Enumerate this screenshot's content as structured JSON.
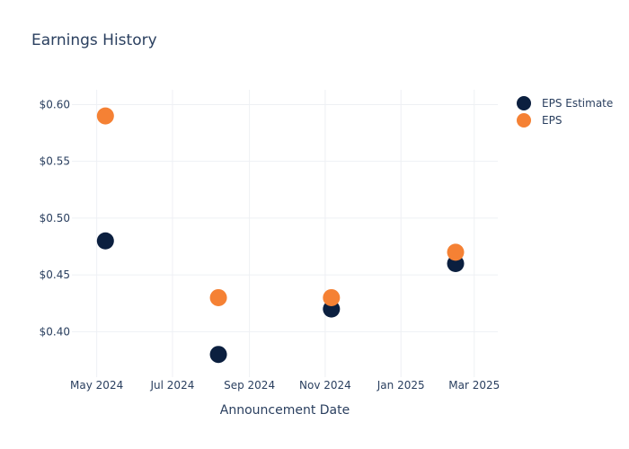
{
  "chart_data": {
    "type": "scatter",
    "title": "Earnings History",
    "xlabel": "Announcement Date",
    "ylabel": "",
    "x_ticks": [
      "2024-05-01",
      "2024-07-01",
      "2024-09-01",
      "2024-11-01",
      "2025-01-01",
      "2025-03-01"
    ],
    "x_tick_labels": [
      "May 2024",
      "Jul 2024",
      "Sep 2024",
      "Nov 2024",
      "Jan 2025",
      "Mar 2025"
    ],
    "y_ticks": [
      0.4,
      0.45,
      0.5,
      0.55,
      0.6
    ],
    "y_tick_labels": [
      "$0.40",
      "$0.45",
      "$0.50",
      "$0.55",
      "$0.60"
    ],
    "xlim": [
      "2024-04-11",
      "2025-03-20"
    ],
    "ylim": [
      0.36,
      0.613
    ],
    "grid": true,
    "legend_position": "top-right",
    "series": [
      {
        "name": "EPS Estimate",
        "color": "#0b1f3f",
        "x": [
          "2024-05-08",
          "2024-08-07",
          "2024-11-06",
          "2025-02-14"
        ],
        "y": [
          0.48,
          0.38,
          0.42,
          0.46
        ]
      },
      {
        "name": "EPS",
        "color": "#f58134",
        "x": [
          "2024-05-08",
          "2024-08-07",
          "2024-11-06",
          "2025-02-14"
        ],
        "y": [
          0.59,
          0.43,
          0.43,
          0.47
        ]
      }
    ]
  }
}
